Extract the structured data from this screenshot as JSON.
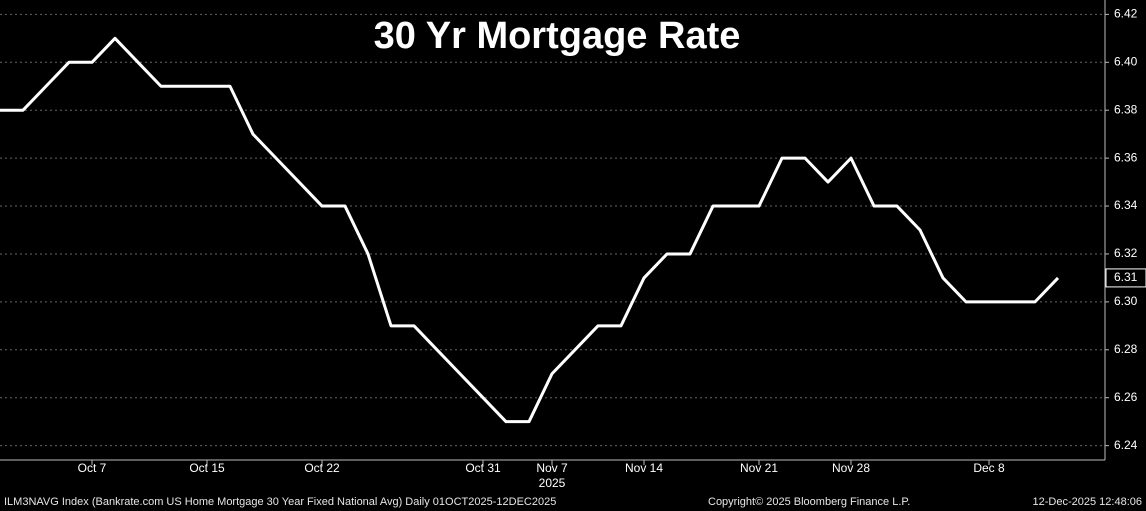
{
  "chart_data": {
    "type": "line",
    "title": "30 Yr Mortgage Rate",
    "values": [
      6.38,
      6.38,
      6.39,
      6.4,
      6.4,
      6.41,
      6.4,
      6.39,
      6.39,
      6.39,
      6.39,
      6.37,
      6.36,
      6.35,
      6.34,
      6.34,
      6.32,
      6.29,
      6.29,
      6.28,
      6.27,
      6.26,
      6.25,
      6.25,
      6.27,
      6.28,
      6.29,
      6.29,
      6.31,
      6.32,
      6.32,
      6.34,
      6.34,
      6.34,
      6.36,
      6.36,
      6.35,
      6.36,
      6.34,
      6.34,
      6.33,
      6.31,
      6.3,
      6.3,
      6.3,
      6.3,
      6.31
    ],
    "color": "#ffffff",
    "xlim": [
      0,
      48
    ],
    "xticks": [
      {
        "value": 4,
        "label": "Oct 7"
      },
      {
        "value": 9,
        "label": "Oct 15"
      },
      {
        "value": 14,
        "label": "Oct 22"
      },
      {
        "value": 21,
        "label": "Oct 31"
      },
      {
        "value": 24,
        "label": "Nov 7"
      },
      {
        "value": 28,
        "label": "Nov 14"
      },
      {
        "value": 33,
        "label": "Nov 21"
      },
      {
        "value": 37,
        "label": "Nov 28"
      },
      {
        "value": 43,
        "label": "Dec 8"
      }
    ],
    "year_label": "2025",
    "ylim": [
      6.234,
      6.426
    ],
    "yticks": [
      6.24,
      6.26,
      6.28,
      {
        "value": 6.3,
        "label": "6.30"
      },
      6.32,
      6.34,
      6.36,
      6.38,
      {
        "value": 6.4,
        "label": "6.40"
      },
      6.42
    ],
    "grid": true,
    "footer": {
      "source": "ILM3NAVG Index (Bankrate.com US Home Mortgage 30 Year Fixed National Avg) Daily 01OCT2025-12DEC2025",
      "copyright": "Copyright© 2025 Bloomberg Finance L.P.",
      "timestamp": "12-Dec-2025 12:48:06"
    }
  }
}
